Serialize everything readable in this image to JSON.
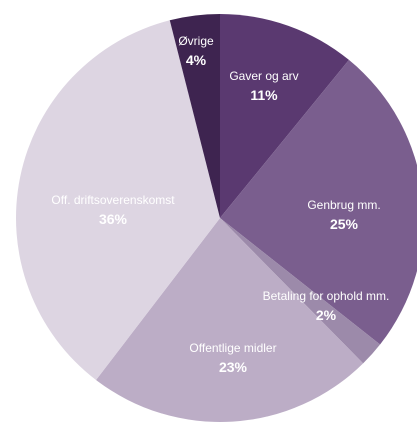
{
  "chart_data": {
    "type": "pie",
    "title": "",
    "slices": [
      {
        "label": "Gaver og arv",
        "value": 11,
        "display": "11%",
        "color": "#5a3970"
      },
      {
        "label": "Genbrug mm.",
        "value": 25,
        "display": "25%",
        "color": "#7a5e8e"
      },
      {
        "label": "Betaling for ophold mm.",
        "value": 2,
        "display": "2%",
        "color": "#9c8aaa"
      },
      {
        "label": "Offentlige midler",
        "value": 23,
        "display": "23%",
        "color": "#bcadc6"
      },
      {
        "label": "Off. driftsoverenskomst",
        "value": 36,
        "display": "36%",
        "color": "#ddd5e2"
      },
      {
        "label": "Øvrige",
        "value": 4,
        "display": "4%",
        "color": "#3e2450"
      }
    ]
  }
}
